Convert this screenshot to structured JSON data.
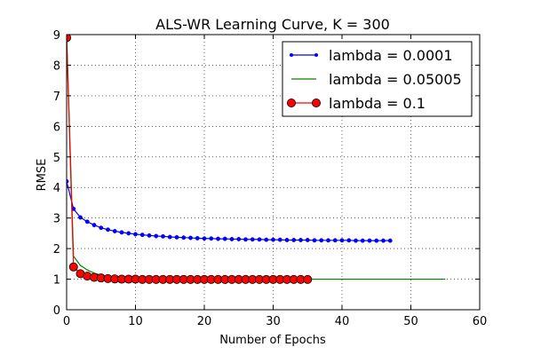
{
  "chart_data": {
    "type": "line",
    "title": "ALS-WR Learning Curve,  K = 300",
    "xlabel": "Number of Epochs",
    "ylabel": "RMSE",
    "xlim": [
      0,
      60
    ],
    "ylim": [
      0,
      9
    ],
    "xticks": [
      0,
      10,
      20,
      30,
      40,
      50,
      60
    ],
    "yticks": [
      0,
      1,
      2,
      3,
      4,
      5,
      6,
      7,
      8,
      9
    ],
    "grid": true,
    "legend_position": "top-right",
    "series": [
      {
        "name": "lambda = 0.0001",
        "color": "#0000ff",
        "marker": "small-dot",
        "x": [
          0,
          1,
          2,
          3,
          4,
          5,
          6,
          7,
          8,
          9,
          10,
          11,
          12,
          13,
          14,
          15,
          16,
          17,
          18,
          19,
          20,
          21,
          22,
          23,
          24,
          25,
          26,
          27,
          28,
          29,
          30,
          31,
          32,
          33,
          34,
          35,
          36,
          37,
          38,
          39,
          40,
          41,
          42,
          43,
          44,
          45,
          46,
          47
        ],
        "y": [
          4.2,
          3.3,
          3.02,
          2.88,
          2.77,
          2.68,
          2.62,
          2.57,
          2.53,
          2.5,
          2.47,
          2.45,
          2.43,
          2.41,
          2.4,
          2.38,
          2.37,
          2.36,
          2.35,
          2.34,
          2.33,
          2.33,
          2.32,
          2.32,
          2.31,
          2.31,
          2.3,
          2.3,
          2.3,
          2.29,
          2.29,
          2.29,
          2.28,
          2.28,
          2.28,
          2.28,
          2.27,
          2.27,
          2.27,
          2.27,
          2.27,
          2.27,
          2.26,
          2.26,
          2.26,
          2.26,
          2.26,
          2.26
        ]
      },
      {
        "name": "lambda = 0.05005",
        "color": "#008000",
        "marker": "none",
        "x": [
          0,
          1,
          2,
          3,
          4,
          5,
          6,
          7,
          8,
          9,
          10,
          11,
          12,
          13,
          14,
          15,
          16,
          17,
          18,
          19,
          20,
          21,
          22,
          23,
          24,
          25,
          26,
          27,
          28,
          29,
          30,
          31,
          32,
          33,
          34,
          35,
          36,
          37,
          38,
          39,
          40,
          41,
          42,
          43,
          44,
          45,
          46,
          47,
          48,
          49,
          50,
          51,
          52,
          53,
          54,
          55
        ],
        "y": [
          9.0,
          1.75,
          1.45,
          1.3,
          1.2,
          1.13,
          1.08,
          1.05,
          1.03,
          1.02,
          1.01,
          1.0,
          1.0,
          1.0,
          1.0,
          1.0,
          1.0,
          1.0,
          1.0,
          1.0,
          1.0,
          1.0,
          1.0,
          1.0,
          1.0,
          1.0,
          1.0,
          1.0,
          1.0,
          1.0,
          1.0,
          1.0,
          1.0,
          1.0,
          1.0,
          1.0,
          1.0,
          1.0,
          1.0,
          1.0,
          1.0,
          1.0,
          1.0,
          1.0,
          1.0,
          1.0,
          1.0,
          1.0,
          1.0,
          1.0,
          1.0,
          1.0,
          1.0,
          1.0,
          1.0,
          1.0
        ]
      },
      {
        "name": "lambda = 0.1",
        "color": "#ff0000",
        "marker": "large-circle",
        "x": [
          0,
          1,
          2,
          3,
          4,
          5,
          6,
          7,
          8,
          9,
          10,
          11,
          12,
          13,
          14,
          15,
          16,
          17,
          18,
          19,
          20,
          21,
          22,
          23,
          24,
          25,
          26,
          27,
          28,
          29,
          30,
          31,
          32,
          33,
          34,
          35
        ],
        "y": [
          8.9,
          1.4,
          1.18,
          1.1,
          1.06,
          1.04,
          1.02,
          1.01,
          1.0,
          1.0,
          1.0,
          0.99,
          0.99,
          0.99,
          0.99,
          0.99,
          0.99,
          0.99,
          0.99,
          0.99,
          0.99,
          0.99,
          0.99,
          0.99,
          0.99,
          0.99,
          0.99,
          0.99,
          0.99,
          0.99,
          0.99,
          0.99,
          0.99,
          0.99,
          0.99,
          0.99
        ]
      }
    ]
  }
}
